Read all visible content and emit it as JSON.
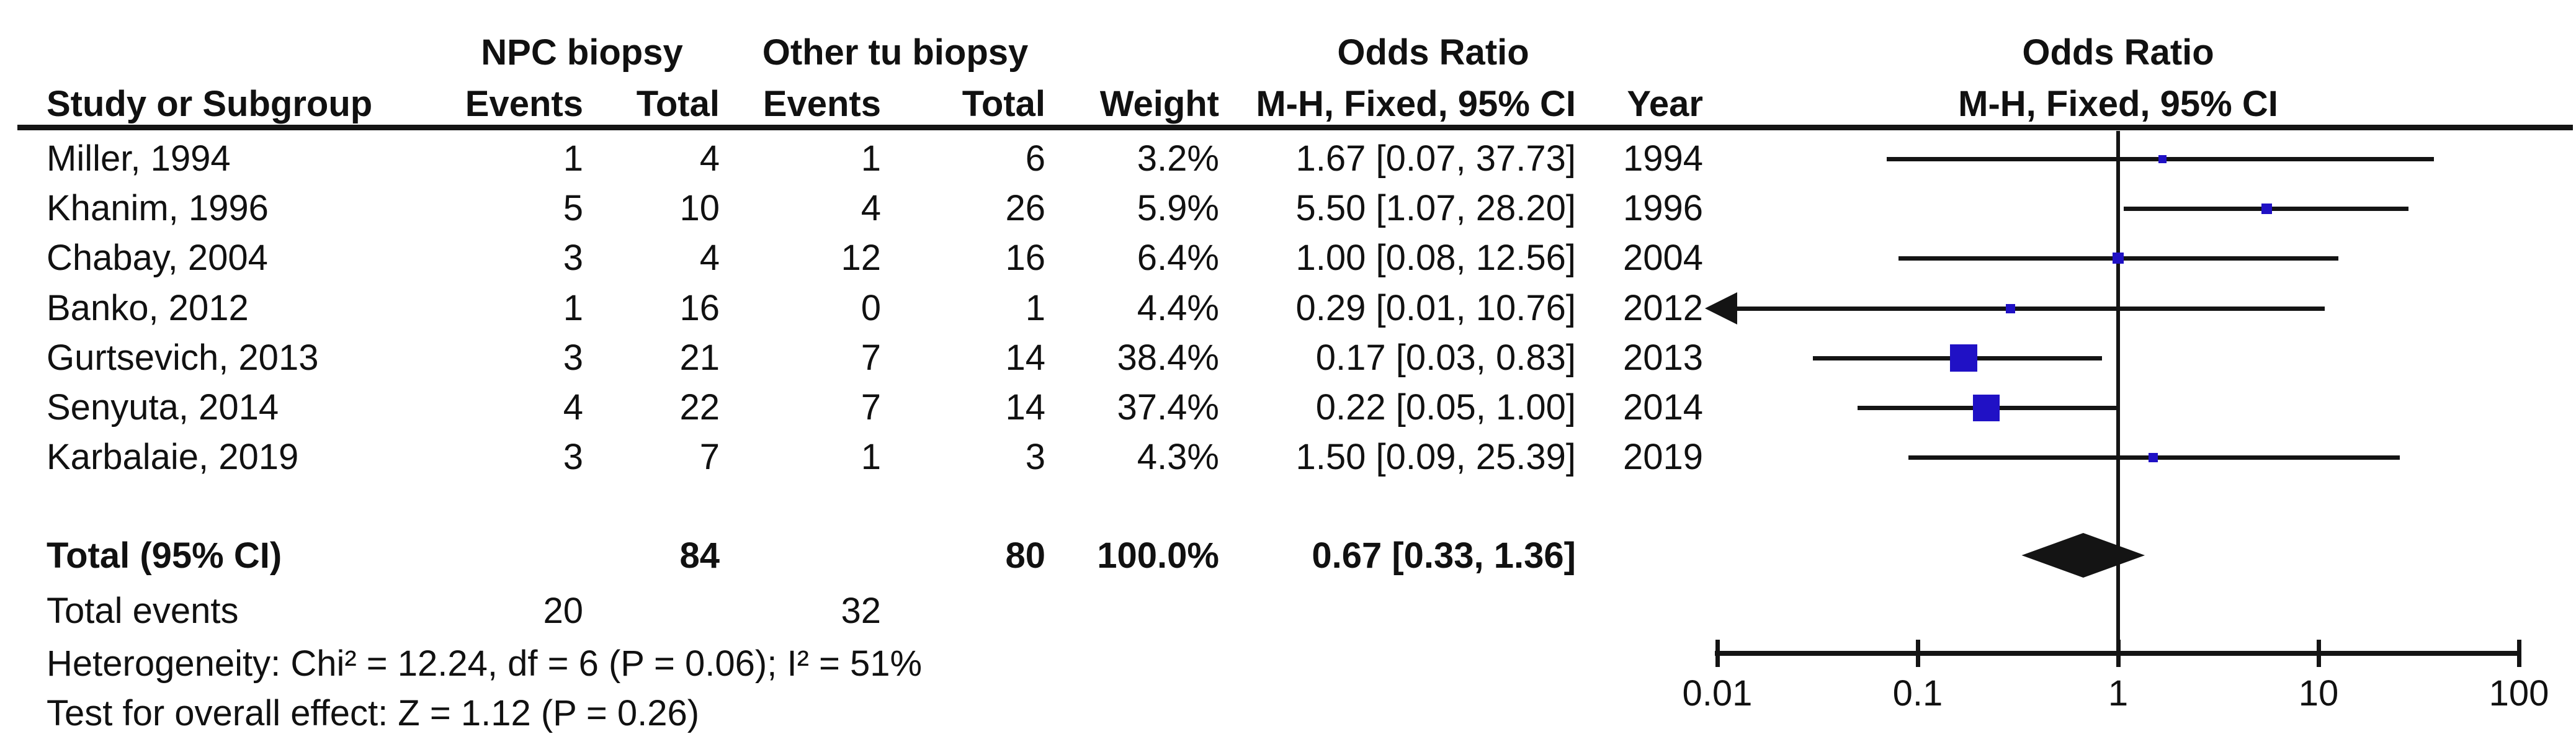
{
  "table": {
    "header_groups": {
      "npc": "NPC biopsy",
      "other": "Other tu biopsy",
      "odds_ratio_left": "Odds Ratio",
      "odds_ratio_right": "Odds Ratio"
    },
    "columns": {
      "study": "Study or Subgroup",
      "events_npc": "Events",
      "total_npc": "Total",
      "events_other": "Events",
      "total_other": "Total",
      "weight": "Weight",
      "mh_fixed_ci": "M-H, Fixed, 95% CI",
      "year": "Year",
      "mh_fixed_ci_right": "M-H, Fixed, 95% CI"
    },
    "rows": [
      {
        "study": "Miller, 1994",
        "e1": "1",
        "t1": "4",
        "e2": "1",
        "t2": "6",
        "weight": "3.2%",
        "or_ci": "1.67 [0.07, 37.73]",
        "year": "1994"
      },
      {
        "study": "Khanim, 1996",
        "e1": "5",
        "t1": "10",
        "e2": "4",
        "t2": "26",
        "weight": "5.9%",
        "or_ci": "5.50 [1.07, 28.20]",
        "year": "1996"
      },
      {
        "study": "Chabay, 2004",
        "e1": "3",
        "t1": "4",
        "e2": "12",
        "t2": "16",
        "weight": "6.4%",
        "or_ci": "1.00 [0.08, 12.56]",
        "year": "2004"
      },
      {
        "study": "Banko, 2012",
        "e1": "1",
        "t1": "16",
        "e2": "0",
        "t2": "1",
        "weight": "4.4%",
        "or_ci": "0.29 [0.01, 10.76]",
        "year": "2012"
      },
      {
        "study": "Gurtsevich, 2013",
        "e1": "3",
        "t1": "21",
        "e2": "7",
        "t2": "14",
        "weight": "38.4%",
        "or_ci": "0.17 [0.03, 0.83]",
        "year": "2013"
      },
      {
        "study": "Senyuta, 2014",
        "e1": "4",
        "t1": "22",
        "e2": "7",
        "t2": "14",
        "weight": "37.4%",
        "or_ci": "0.22 [0.05, 1.00]",
        "year": "2014"
      },
      {
        "study": "Karbalaie, 2019",
        "e1": "3",
        "t1": "7",
        "e2": "1",
        "t2": "3",
        "weight": "4.3%",
        "or_ci": "1.50 [0.09, 25.39]",
        "year": "2019"
      }
    ],
    "total_row": {
      "label": "Total (95% CI)",
      "t1": "84",
      "t2": "80",
      "weight": "100.0%",
      "or_ci": "0.67 [0.33, 1.36]"
    },
    "total_events": {
      "label": "Total events",
      "e1": "20",
      "e2": "32"
    },
    "heterogeneity": "Heterogeneity: Chi² = 12.24, df = 6 (P = 0.06); I² = 51%",
    "overall_effect": "Test for overall effect: Z = 1.12 (P = 0.26)"
  },
  "chart_data": {
    "type": "forest",
    "effect_measure": "Odds Ratio",
    "method": "M-H, Fixed, 95% CI",
    "x_scale": "log10",
    "x_range": [
      0.01,
      100
    ],
    "x_ticks": [
      0.01,
      0.1,
      1,
      10,
      100
    ],
    "x_tick_labels": [
      "0.01",
      "0.1",
      "1",
      "10",
      "100"
    ],
    "no_effect_line": 1,
    "studies": [
      {
        "name": "Miller, 1994",
        "events_npc": 1,
        "total_npc": 4,
        "events_other": 1,
        "total_other": 6,
        "weight_pct": 3.2,
        "or": 1.67,
        "ci_low": 0.07,
        "ci_high": 37.73,
        "year": 1994,
        "arrow_low": false
      },
      {
        "name": "Khanim, 1996",
        "events_npc": 5,
        "total_npc": 10,
        "events_other": 4,
        "total_other": 26,
        "weight_pct": 5.9,
        "or": 5.5,
        "ci_low": 1.07,
        "ci_high": 28.2,
        "year": 1996,
        "arrow_low": false
      },
      {
        "name": "Chabay, 2004",
        "events_npc": 3,
        "total_npc": 4,
        "events_other": 12,
        "total_other": 16,
        "weight_pct": 6.4,
        "or": 1.0,
        "ci_low": 0.08,
        "ci_high": 12.56,
        "year": 2004,
        "arrow_low": false
      },
      {
        "name": "Banko, 2012",
        "events_npc": 1,
        "total_npc": 16,
        "events_other": 0,
        "total_other": 1,
        "weight_pct": 4.4,
        "or": 0.29,
        "ci_low": 0.01,
        "ci_high": 10.76,
        "year": 2012,
        "arrow_low": true
      },
      {
        "name": "Gurtsevich, 2013",
        "events_npc": 3,
        "total_npc": 21,
        "events_other": 7,
        "total_other": 14,
        "weight_pct": 38.4,
        "or": 0.17,
        "ci_low": 0.03,
        "ci_high": 0.83,
        "year": 2013,
        "arrow_low": false
      },
      {
        "name": "Senyuta, 2014",
        "events_npc": 4,
        "total_npc": 22,
        "events_other": 7,
        "total_other": 14,
        "weight_pct": 37.4,
        "or": 0.22,
        "ci_low": 0.05,
        "ci_high": 1.0,
        "year": 2014,
        "arrow_low": false
      },
      {
        "name": "Karbalaie, 2019",
        "events_npc": 3,
        "total_npc": 7,
        "events_other": 1,
        "total_other": 3,
        "weight_pct": 4.3,
        "or": 1.5,
        "ci_low": 0.09,
        "ci_high": 25.39,
        "year": 2019,
        "arrow_low": false
      }
    ],
    "total": {
      "label": "Total (95% CI)",
      "total_npc": 84,
      "total_other": 80,
      "weight_pct": 100.0,
      "or": 0.67,
      "ci_low": 0.33,
      "ci_high": 1.36
    },
    "total_events": {
      "events_npc": 20,
      "events_other": 32
    },
    "heterogeneity": {
      "chi2": 12.24,
      "df": 6,
      "p": 0.06,
      "i2_pct": 51
    },
    "overall_effect": {
      "z": 1.12,
      "p": 0.26
    },
    "legend_position": "none",
    "grid": false,
    "marker_color": "#2011c5",
    "line_color": "#141414"
  },
  "colors": {
    "background": "#ffffff",
    "text": "#111111",
    "marker_blue": "#2011c5",
    "line_black": "#141414"
  }
}
